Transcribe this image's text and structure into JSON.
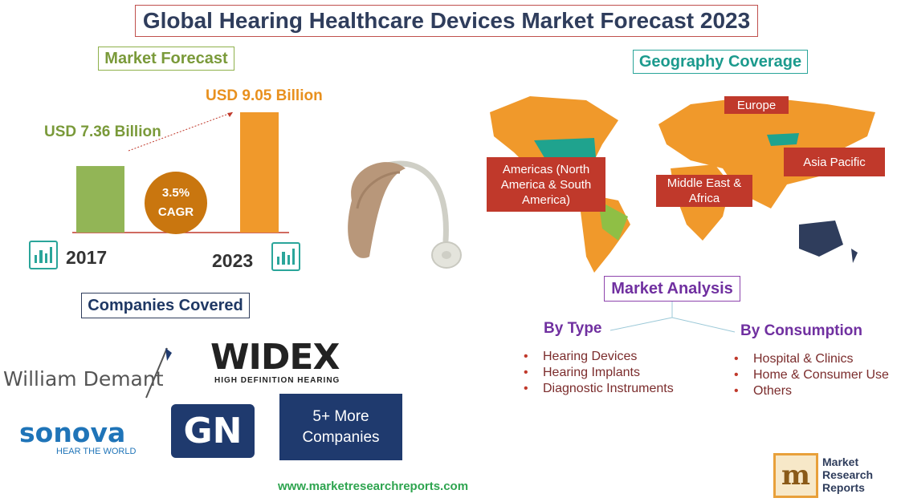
{
  "title": "Global Hearing Healthcare Devices Market Forecast 2023",
  "market_forecast": {
    "heading": "Market Forecast",
    "cagr_value": "3.5%",
    "cagr_label": "CAGR"
  },
  "chart_data": {
    "type": "bar",
    "title": "Market Forecast",
    "categories": [
      "2017",
      "2023"
    ],
    "values": [
      7.36,
      9.05
    ],
    "value_labels": [
      "USD 7.36 Billion",
      "USD 9.05 Billion"
    ],
    "colors": [
      "#92b556",
      "#f0992b"
    ],
    "annotation": "3.5% CAGR"
  },
  "geography": {
    "heading": "Geography Coverage",
    "regions": [
      {
        "label": "Europe"
      },
      {
        "label": "Asia Pacific"
      },
      {
        "label": "Americas (North America & South America)"
      },
      {
        "label": "Middle East & Africa"
      }
    ]
  },
  "analysis": {
    "heading": "Market Analysis",
    "by_type": {
      "heading": "By Type",
      "items": [
        "Hearing Devices",
        "Hearing Implants",
        "Diagnostic Instruments"
      ]
    },
    "by_consumption": {
      "heading": "By Consumption",
      "items": [
        "Hospital & Clinics",
        "Home & Consumer Use",
        "Others"
      ]
    }
  },
  "companies": {
    "heading": "Companies Covered",
    "list": [
      "William Demant",
      "WIDEX",
      "sonova",
      "GN"
    ],
    "widex_tagline": "HIGH DEFINITION HEARING",
    "sonova_tagline": "HEAR THE WORLD",
    "more": "5+ More Companies"
  },
  "footer": {
    "url": "www.marketresearchreports.com",
    "brand_line1": "Market",
    "brand_line2": "Research",
    "brand_line3": "Reports"
  },
  "colors": {
    "title_navy": "#2f3d5c",
    "green": "#92b556",
    "orange": "#f0992b",
    "teal": "#2aa59a",
    "purple": "#7030a0",
    "region_red": "#c0392b"
  }
}
